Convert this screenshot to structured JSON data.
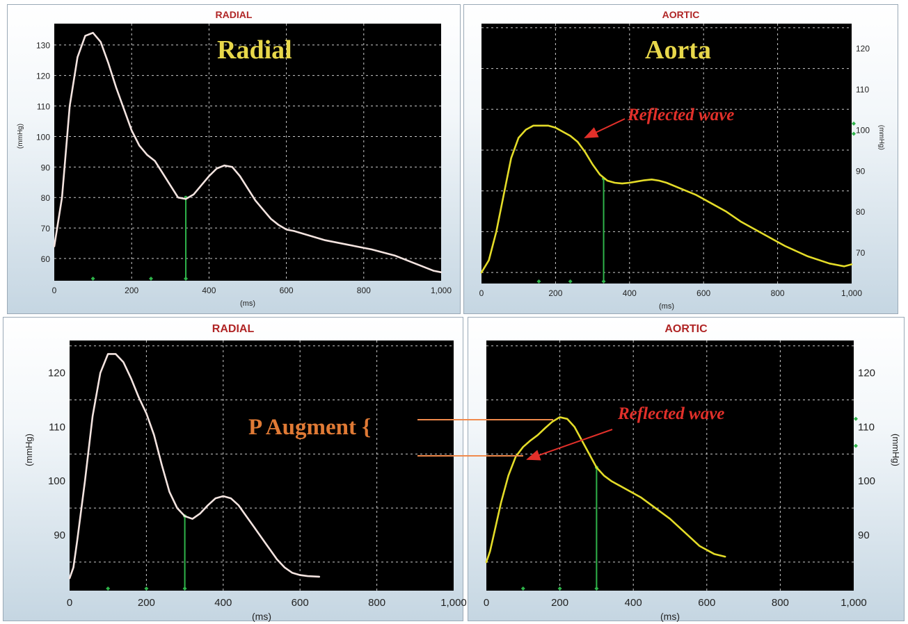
{
  "colors": {
    "plot_bg": "#000000",
    "grid": "#ffffff",
    "radial_curve": "#f4e4e0",
    "aortic_curve": "#e4dc28",
    "marker": "#2fb34a",
    "panel_title": "#b02525",
    "big_label": "#e8d84a",
    "annotation": "#e2302a",
    "p_augment": "#e07a35"
  },
  "annotations": {
    "p_augment": "P Augment {",
    "reflected_top": "Reflected wave",
    "reflected_bottom": "Reflected wave"
  },
  "chart_data": [
    {
      "id": "top-radial",
      "type": "line",
      "title": "RADIAL",
      "label": "Radial",
      "xlabel": "(ms)",
      "ylabel": "(mmHg)",
      "xlim": [
        0,
        1000
      ],
      "ylim": [
        55,
        137
      ],
      "xticks": [
        0,
        200,
        400,
        600,
        800,
        1000
      ],
      "xtick_labels": [
        "0",
        "200",
        "400",
        "600",
        "800",
        "1,000"
      ],
      "yticks": [
        60,
        70,
        80,
        90,
        100,
        110,
        120,
        130
      ],
      "ygrid": [
        60,
        70,
        80,
        90,
        100,
        110,
        120,
        130
      ],
      "yaxis_side": "left",
      "grid": true,
      "series": [
        {
          "x": [
            0,
            20,
            40,
            60,
            80,
            100,
            120,
            140,
            160,
            180,
            200,
            220,
            240,
            260,
            280,
            300,
            320,
            340,
            360,
            380,
            400,
            420,
            440,
            460,
            480,
            500,
            520,
            540,
            560,
            580,
            600,
            620,
            660,
            700,
            760,
            820,
            880,
            920,
            960,
            980,
            1000
          ],
          "y": [
            64,
            80,
            110,
            126,
            133,
            134,
            131,
            124,
            116,
            109,
            102,
            97,
            94,
            92,
            88,
            84,
            80,
            79.5,
            81,
            84,
            87,
            89.5,
            90.5,
            90,
            87,
            83,
            79,
            76,
            73,
            71,
            69.5,
            69,
            67.5,
            66,
            64.5,
            63,
            61,
            59,
            57,
            56,
            55.5
          ]
        }
      ],
      "markers_x": [
        100,
        250,
        340
      ],
      "drop_line": {
        "x": 340,
        "y": 80
      }
    },
    {
      "id": "top-aortic",
      "type": "line",
      "title": "AORTIC",
      "label": "Aorta",
      "xlabel": "(ms)",
      "ylabel": "(mmHg)",
      "xlim": [
        0,
        1000
      ],
      "ylim": [
        64,
        126
      ],
      "xticks": [
        0,
        200,
        400,
        600,
        800,
        1000
      ],
      "xtick_labels": [
        "0",
        "200",
        "400",
        "600",
        "800",
        "1,000"
      ],
      "yticks": [
        70,
        80,
        90,
        100,
        110,
        120
      ],
      "ygrid": [
        65,
        75,
        85,
        95,
        105,
        115,
        125
      ],
      "yaxis_side": "right",
      "grid": true,
      "series": [
        {
          "x": [
            0,
            20,
            40,
            60,
            80,
            100,
            120,
            140,
            160,
            180,
            200,
            220,
            240,
            260,
            280,
            300,
            320,
            340,
            360,
            380,
            400,
            420,
            440,
            460,
            480,
            500,
            540,
            580,
            620,
            660,
            700,
            760,
            820,
            880,
            940,
            980,
            1000
          ],
          "y": [
            65,
            68,
            75,
            84,
            93,
            98,
            100,
            101,
            101,
            101,
            100.5,
            99.5,
            98.5,
            97,
            94.5,
            91.5,
            89,
            87.5,
            87,
            86.8,
            87,
            87.3,
            87.6,
            87.8,
            87.5,
            87,
            85.5,
            84,
            82,
            80,
            77.5,
            74.5,
            71.5,
            69,
            67.2,
            66.5,
            67
          ]
        }
      ],
      "markers_x": [
        155,
        240,
        330
      ],
      "right_markers_y": [
        101.5,
        99
      ],
      "drop_line": {
        "x": 330,
        "y": 88
      }
    },
    {
      "id": "bottom-radial",
      "type": "line",
      "title": "RADIAL",
      "label": "",
      "xlabel": "(ms)",
      "ylabel": "(mmHg)",
      "xlim": [
        0,
        1000
      ],
      "ylim": [
        81,
        126
      ],
      "xticks": [
        0,
        200,
        400,
        600,
        800,
        1000
      ],
      "xtick_labels": [
        "0",
        "200",
        "400",
        "600",
        "800",
        "1,000"
      ],
      "yticks": [
        90,
        100,
        110,
        120
      ],
      "ygrid": [
        85,
        95,
        105,
        115,
        125
      ],
      "yaxis_side": "left",
      "grid": true,
      "series": [
        {
          "x": [
            0,
            10,
            20,
            40,
            60,
            80,
            100,
            120,
            140,
            160,
            180,
            200,
            220,
            240,
            260,
            280,
            300,
            320,
            340,
            360,
            380,
            400,
            420,
            440,
            460,
            480,
            500,
            520,
            540,
            560,
            580,
            600,
            620,
            650
          ],
          "y": [
            82,
            84,
            89,
            100,
            112,
            120,
            123.5,
            123.5,
            122,
            119,
            115.5,
            112.5,
            108.5,
            103,
            98,
            95,
            93.5,
            93,
            94,
            95.5,
            96.8,
            97.2,
            96.8,
            95.5,
            93.5,
            91.5,
            89.5,
            87.5,
            85.5,
            84,
            83,
            82.6,
            82.4,
            82.3
          ]
        }
      ],
      "markers_x": [
        100,
        200,
        300
      ],
      "drop_line": {
        "x": 300,
        "y": 93.5
      }
    },
    {
      "id": "bottom-aortic",
      "type": "line",
      "title": "AORTIC",
      "label": "",
      "xlabel": "(ms)",
      "ylabel": "(mmHg)",
      "xlim": [
        0,
        1000
      ],
      "ylim": [
        81,
        126
      ],
      "xticks": [
        0,
        200,
        400,
        600,
        800,
        1000
      ],
      "xtick_labels": [
        "0",
        "200",
        "400",
        "600",
        "800",
        "1,000"
      ],
      "yticks": [
        90,
        100,
        110,
        120
      ],
      "ygrid": [
        85,
        95,
        105,
        115,
        125
      ],
      "yaxis_side": "right",
      "grid": true,
      "series": [
        {
          "x": [
            0,
            10,
            20,
            40,
            60,
            80,
            100,
            120,
            140,
            160,
            180,
            200,
            220,
            240,
            260,
            280,
            300,
            320,
            340,
            380,
            420,
            460,
            500,
            540,
            580,
            620,
            650
          ],
          "y": [
            85,
            87,
            90,
            96,
            101,
            104.5,
            106.3,
            107.5,
            108.5,
            109.8,
            111,
            111.8,
            111.5,
            110,
            107.5,
            105,
            102.5,
            101,
            100,
            98.5,
            97,
            95,
            93,
            90.5,
            88,
            86.5,
            86
          ]
        }
      ],
      "markers_x": [
        100,
        200,
        300
      ],
      "right_markers_y": [
        111.5,
        106.5
      ],
      "drop_line": {
        "x": 300,
        "y": 102.5
      }
    }
  ]
}
